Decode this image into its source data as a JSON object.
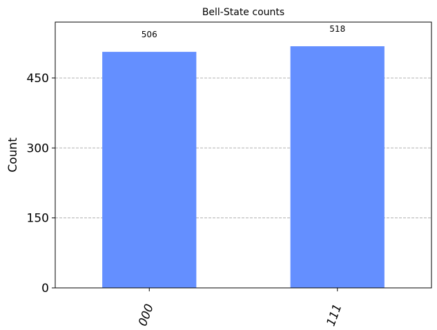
{
  "chart_data": {
    "type": "bar",
    "title": "Bell-State counts",
    "ylabel": "Count",
    "xlabel": "",
    "categories": [
      "000",
      "111"
    ],
    "values": [
      506,
      518
    ],
    "ylim": [
      0,
      569.8
    ],
    "yticks": [
      0,
      150,
      300,
      450
    ],
    "grid": "y-dashed",
    "bar_color": "#648fff"
  }
}
